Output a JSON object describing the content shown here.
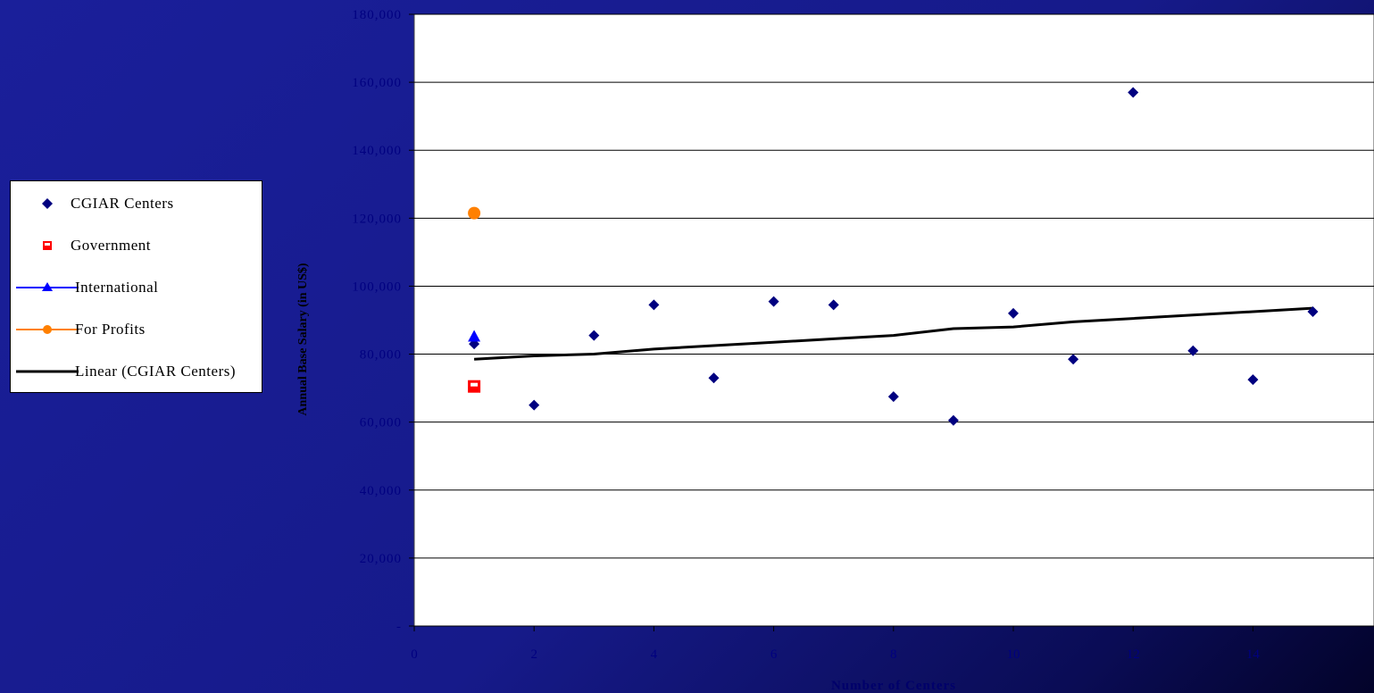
{
  "chart_data": {
    "type": "scatter",
    "title": "",
    "xlabel": "Number of Centers",
    "ylabel": "Annual Base Salary (in US$)",
    "xlim": [
      0,
      16
    ],
    "ylim": [
      0,
      180000
    ],
    "x_ticks": [
      "0",
      "2",
      "4",
      "6",
      "8",
      "10",
      "12",
      "14"
    ],
    "y_ticks": [
      "-",
      "20,000",
      "40,000",
      "60,000",
      "80,000",
      "100,000",
      "120,000",
      "140,000",
      "160,000",
      "180,000"
    ],
    "grid": "horizontal",
    "legend_position": "left",
    "series": [
      {
        "name": "CGIAR Centers",
        "marker": "diamond",
        "color": "#000080",
        "points": [
          {
            "x": 1,
            "y": 83000
          },
          {
            "x": 2,
            "y": 65000
          },
          {
            "x": 3,
            "y": 85500
          },
          {
            "x": 4,
            "y": 94500
          },
          {
            "x": 5,
            "y": 73000
          },
          {
            "x": 6,
            "y": 95500
          },
          {
            "x": 7,
            "y": 94500
          },
          {
            "x": 8,
            "y": 67500
          },
          {
            "x": 9,
            "y": 60500
          },
          {
            "x": 10,
            "y": 92000
          },
          {
            "x": 11,
            "y": 78500
          },
          {
            "x": 12,
            "y": 157000
          },
          {
            "x": 13,
            "y": 81000
          },
          {
            "x": 14,
            "y": 72500
          },
          {
            "x": 15,
            "y": 92500
          }
        ]
      },
      {
        "name": "Government",
        "marker": "square",
        "color": "#ff0000",
        "points": [
          {
            "x": 1,
            "y": 70500
          }
        ]
      },
      {
        "name": "International",
        "marker": "triangle",
        "color": "#0000ff",
        "points": [
          {
            "x": 1,
            "y": 85000
          }
        ]
      },
      {
        "name": "For Profits",
        "marker": "circle",
        "color": "#ff8000",
        "points": [
          {
            "x": 1,
            "y": 121500
          }
        ]
      },
      {
        "name": "Linear (CGIAR Centers)",
        "marker": "line",
        "color": "#000000",
        "points": [
          {
            "x": 1,
            "y": 78500
          },
          {
            "x": 2,
            "y": 79500
          },
          {
            "x": 3,
            "y": 80000
          },
          {
            "x": 4,
            "y": 81500
          },
          {
            "x": 5,
            "y": 82500
          },
          {
            "x": 6,
            "y": 83500
          },
          {
            "x": 7,
            "y": 84500
          },
          {
            "x": 8,
            "y": 85500
          },
          {
            "x": 9,
            "y": 87500
          },
          {
            "x": 10,
            "y": 88000
          },
          {
            "x": 11,
            "y": 89500
          },
          {
            "x": 12,
            "y": 90500
          },
          {
            "x": 13,
            "y": 91500
          },
          {
            "x": 14,
            "y": 92500
          },
          {
            "x": 15,
            "y": 93500
          }
        ]
      }
    ]
  }
}
